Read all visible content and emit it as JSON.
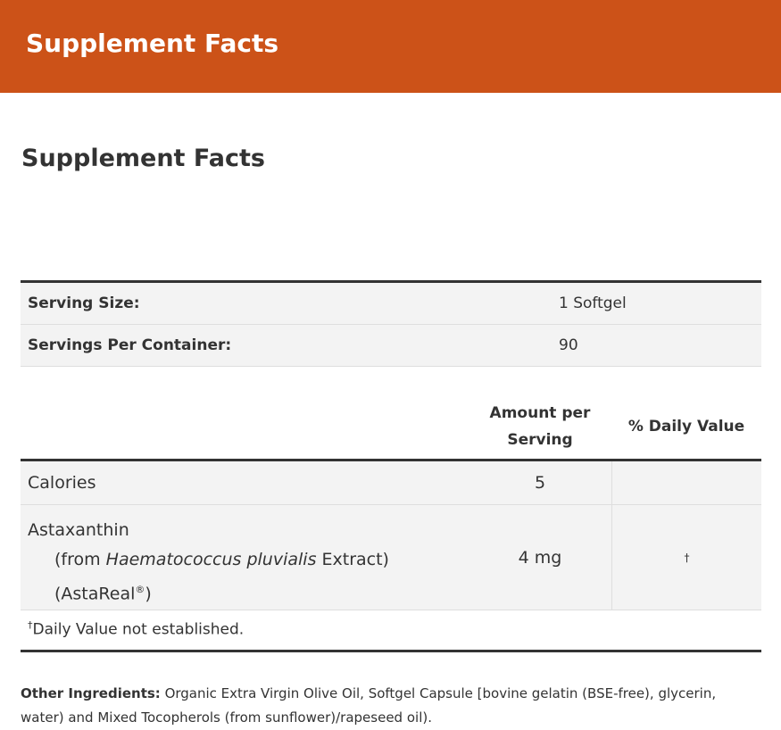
{
  "header": {
    "title": "Supplement Facts"
  },
  "section_title": "Supplement Facts",
  "serving": [
    {
      "label": "Serving Size:",
      "value": "1 Softgel"
    },
    {
      "label": "Servings Per Container:",
      "value": "90"
    }
  ],
  "facts": {
    "col_amount": "Amount per Serving",
    "col_dv": "% Daily Value",
    "rows": [
      {
        "name": "Calories",
        "amount": "5",
        "dv": ""
      },
      {
        "name": "Astaxanthin",
        "sub_prefix": "(from ",
        "sub_italic": "Haematococcus pluvialis",
        "sub_suffix": " Extract)",
        "brand": "(AstaReal",
        "brand_mark": "®",
        "brand_close": ")",
        "amount": "4 mg",
        "dv": "†"
      }
    ],
    "footnote_mark": "†",
    "footnote": "Daily Value not established."
  },
  "other_ingredients": {
    "label": "Other Ingredients:",
    "text": " Organic Extra Virgin Olive Oil, Softgel Capsule [bovine gelatin (BSE-free), glycerin, water) and Mixed Tocopherols (from sunflower)/rapeseed oil)."
  },
  "colors": {
    "banner": "#cc5218",
    "text": "#333333",
    "row_bg": "#f3f3f3"
  }
}
